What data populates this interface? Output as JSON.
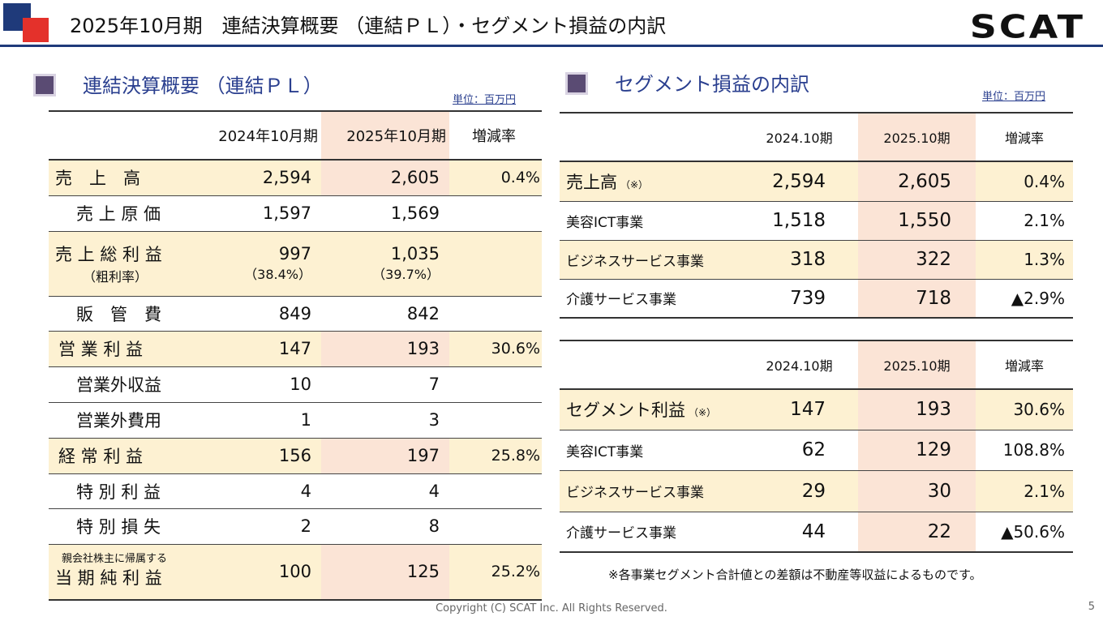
{
  "header": {
    "title": "2025年10月期　連結決算概要 （連結ＰＬ）・セグメント損益の内訳",
    "brand": "SCAT"
  },
  "pl": {
    "heading": "連結決算概要 （連結ＰＬ）",
    "unit": "単位：百万円",
    "columns": [
      "2024年10月期",
      "2025年10月期",
      "増減率"
    ],
    "rows": [
      {
        "label": "売　上　高",
        "prev": "2,594",
        "curr": "2,605",
        "rate": "0.4%"
      },
      {
        "label": "売 上 原 価",
        "prev": "1,597",
        "curr": "1,569",
        "rate": ""
      },
      {
        "label": "売 上 総 利 益",
        "sublabel": "（粗利率）",
        "prev": "997",
        "prev_sub": "（38.4%）",
        "curr": "1,035",
        "curr_sub": "（39.7%）",
        "rate": ""
      },
      {
        "label": "販　管　費",
        "prev": "849",
        "curr": "842",
        "rate": ""
      },
      {
        "label": "営 業 利 益",
        "prev": "147",
        "curr": "193",
        "rate": "30.6%"
      },
      {
        "label": "営業外収益",
        "prev": "10",
        "curr": "7",
        "rate": ""
      },
      {
        "label": "営業外費用",
        "prev": "1",
        "curr": "3",
        "rate": ""
      },
      {
        "label": "経 常 利 益",
        "prev": "156",
        "curr": "197",
        "rate": "25.8%"
      },
      {
        "label": "特 別 利 益",
        "prev": "4",
        "curr": "4",
        "rate": ""
      },
      {
        "label": "特 別 損 失",
        "prev": "2",
        "curr": "8",
        "rate": ""
      },
      {
        "label": "当 期 純 利 益",
        "prelabel": "親会社株主に帰属する",
        "prev": "100",
        "curr": "125",
        "rate": "25.2%"
      }
    ]
  },
  "segment": {
    "heading": "セグメント損益の内訳",
    "unit": "単位：百万円",
    "columns": [
      "2024.10期",
      "2025.10期",
      "増減率"
    ],
    "sales_rows": [
      {
        "label": "売上高",
        "mark": "（※）",
        "prev": "2,594",
        "curr": "2,605",
        "rate": "0.4%"
      },
      {
        "label": "美容ICT事業",
        "prev": "1,518",
        "curr": "1,550",
        "rate": "2.1%"
      },
      {
        "label": "ビジネスサービス事業",
        "prev": "318",
        "curr": "322",
        "rate": "1.3%"
      },
      {
        "label": "介護サービス事業",
        "prev": "739",
        "curr": "718",
        "rate": "▲2.9%"
      }
    ],
    "profit_rows": [
      {
        "label": "セグメント利益",
        "mark": "（※）",
        "prev": "147",
        "curr": "193",
        "rate": "30.6%"
      },
      {
        "label": "美容ICT事業",
        "prev": "62",
        "curr": "129",
        "rate": "108.8%"
      },
      {
        "label": "ビジネスサービス事業",
        "prev": "29",
        "curr": "30",
        "rate": "2.1%"
      },
      {
        "label": "介護サービス事業",
        "prev": "44",
        "curr": "22",
        "rate": "▲50.6%"
      }
    ],
    "note": "※各事業セグメント合計値との差額は不動産等収益によるものです。"
  },
  "footer": {
    "copyright": "Copyright (C) SCAT Inc. All Rights Reserved.",
    "page": "5"
  },
  "colors": {
    "accent": "#1f3a7a",
    "brand_red": "#e4312b",
    "row_highlight": "#fdf1d2",
    "col_highlight": "#fbe4d6"
  }
}
